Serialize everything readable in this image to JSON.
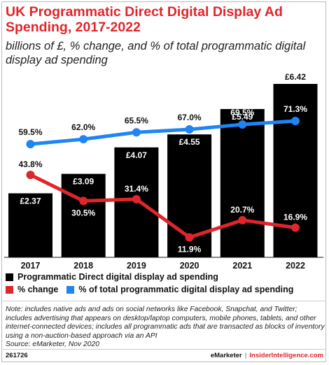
{
  "title": "UK Programmatic Direct Digital Display Ad Spending, 2017-2022",
  "subtitle": "billions of £, % change, and % of total programmatic digital display ad spending",
  "legend": {
    "bars": "Programmatic Direct digital display ad spending",
    "change": "% change",
    "share": "% of total programmatic digital display ad spending"
  },
  "note": "Note: includes native ads and ads on social networks like Facebook, Snapchat, and Twitter; includes advertising that appears on desktop/laptop computers, mobile phones, tablets, and other internet-connected devices; includes all programmatic ads that are transacted as blocks of inventory using a non-auction-based approach via an API",
  "source": "Source: eMarketer, Nov 2020",
  "footer": {
    "id": "261726",
    "brand": "eMarketer",
    "separator": "|",
    "brand2": "InsiderIntelligence.com"
  },
  "colors": {
    "bar": "#000000",
    "change": "#e0252b",
    "share": "#1f85f2",
    "title": "#e0252b"
  },
  "chart_data": {
    "type": "bar",
    "categories": [
      "2017",
      "2018",
      "2019",
      "2020",
      "2021",
      "2022"
    ],
    "series": [
      {
        "name": "Programmatic Direct digital display ad spending",
        "type": "bar",
        "values": [
          2.37,
          3.09,
          4.07,
          4.55,
          5.49,
          6.42
        ],
        "labels": [
          "£2.37",
          "£3.09",
          "£4.07",
          "£4.55",
          "£5.49",
          "£6.42"
        ]
      },
      {
        "name": "% change",
        "type": "line",
        "values": [
          43.8,
          30.5,
          31.4,
          11.9,
          20.7,
          16.9
        ],
        "labels": [
          "43.8%",
          "30.5%",
          "31.4%",
          "11.9%",
          "20.7%",
          "16.9%"
        ]
      },
      {
        "name": "% of total programmatic digital display ad spending",
        "type": "line",
        "values": [
          59.5,
          62.0,
          65.5,
          67.0,
          69.5,
          71.3
        ],
        "labels": [
          "59.5%",
          "62.0%",
          "65.5%",
          "67.0%",
          "69.5%",
          "71.3%"
        ]
      }
    ],
    "ylim": [
      0,
      6.42
    ],
    "grid": false,
    "legend_position": "bottom"
  }
}
